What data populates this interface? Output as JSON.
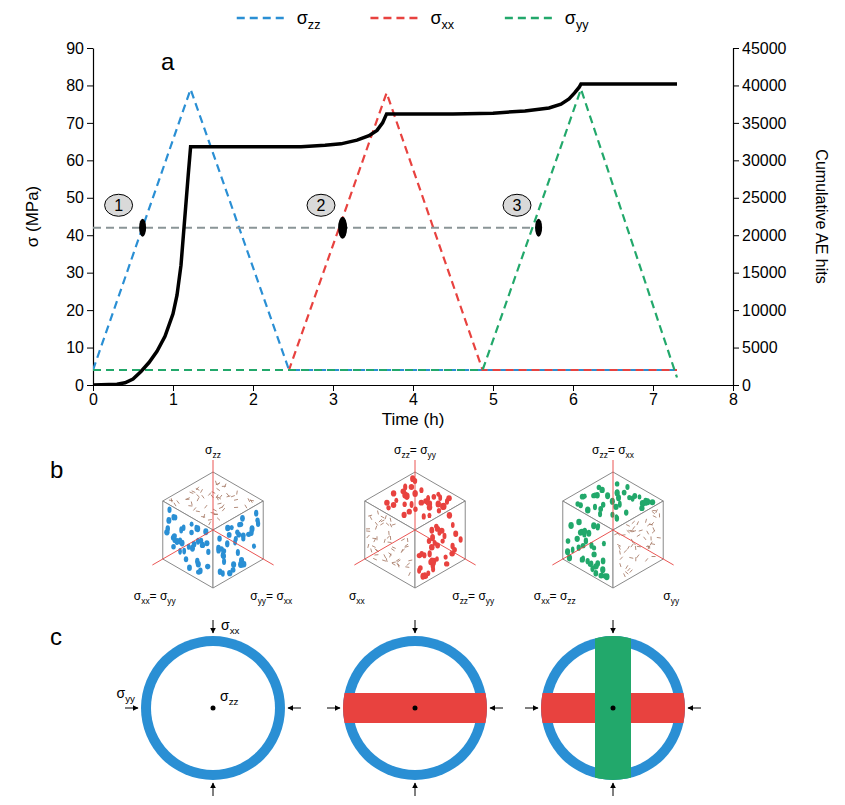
{
  "chart_data": {
    "type": "line",
    "panel_label": "a",
    "xlabel": "Time (h)",
    "ylabel": "σ (MPa)",
    "y2label": "Cumulative AE hits",
    "xlim": [
      0,
      8
    ],
    "xticks": [
      0,
      1,
      2,
      3,
      4,
      5,
      6,
      7,
      8
    ],
    "ylim": [
      0,
      90
    ],
    "yticks": [
      0,
      10,
      20,
      30,
      40,
      50,
      60,
      70,
      80,
      90
    ],
    "y2lim": [
      0,
      45000
    ],
    "y2ticks": [
      0,
      5000,
      10000,
      15000,
      20000,
      25000,
      30000,
      35000,
      40000,
      45000
    ],
    "legend": "top",
    "series": [
      {
        "name": "σzz",
        "color": "#2a8fd4",
        "line_style": "dashed",
        "x": [
          0,
          1.22,
          2.45,
          7.3
        ],
        "values": [
          4,
          79,
          4,
          4
        ]
      },
      {
        "name": "σxx",
        "color": "#e8423f",
        "line_style": "dashed",
        "x": [
          0,
          2.45,
          3.67,
          4.87,
          7.3
        ],
        "values": [
          4,
          4,
          78,
          4,
          4
        ]
      },
      {
        "name": "σyy",
        "color": "#22a86b",
        "line_style": "dashed",
        "x": [
          0,
          4.87,
          6.1,
          7.3
        ],
        "values": [
          4,
          4,
          79,
          2
        ]
      },
      {
        "color": "#8a9597",
        "line_style": "dashed",
        "x": [
          0,
          5.6
        ],
        "values": [
          42,
          42
        ]
      },
      {
        "color": "#000000",
        "line_style": "solid",
        "axis": "y2",
        "x": [
          0,
          0.3,
          0.4,
          0.5,
          0.6,
          0.7,
          0.8,
          0.9,
          1.0,
          1.05,
          1.1,
          1.13,
          1.16,
          1.19,
          1.22,
          2.0,
          2.6,
          2.9,
          3.1,
          3.3,
          3.45,
          3.55,
          3.62,
          3.67,
          4.5,
          5.0,
          5.4,
          5.7,
          5.85,
          5.95,
          6.02,
          6.08,
          6.1,
          7.3
        ],
        "values": [
          0,
          100,
          300,
          800,
          1800,
          3000,
          4500,
          6500,
          9500,
          12000,
          16000,
          20000,
          24000,
          28000,
          31800,
          31800,
          31800,
          32000,
          32200,
          32700,
          33300,
          34000,
          35000,
          36200,
          36200,
          36300,
          36600,
          37000,
          37500,
          38200,
          39000,
          39800,
          40200,
          40200
        ]
      }
    ],
    "annotations": [
      {
        "text": "1",
        "x": 0.32,
        "y": 48
      },
      {
        "text": "2",
        "x": 2.85,
        "y": 48
      },
      {
        "text": "3",
        "x": 5.3,
        "y": 48
      }
    ],
    "markers": [
      {
        "x": 0.62,
        "y": 42
      },
      {
        "x": 3.12,
        "y": 42
      },
      {
        "x": 5.57,
        "y": 42
      }
    ]
  },
  "diagram_b": {
    "panel_label": "b",
    "cubes": [
      {
        "top": "σzz",
        "left": "σxx= σyy",
        "right": "σyy= σxx",
        "fill": [
          "left",
          "right"
        ],
        "color": "#2a8fd4"
      },
      {
        "top": "σzz= σyy",
        "left": "σxx",
        "right": "σzz= σyy",
        "fill": [
          "top",
          "right"
        ],
        "color": "#e8423f"
      },
      {
        "top": "σzz= σxx",
        "left": "σxx= σzz",
        "right": "σyy",
        "fill": [
          "top",
          "left"
        ],
        "color": "#22a86b"
      }
    ]
  },
  "diagram_c": {
    "panel_label": "c",
    "labels": {
      "top": "σxx",
      "left": "σyy",
      "center": "σzz"
    },
    "ring_color": "#2a8fd4",
    "circles": [
      {
        "bands": []
      },
      {
        "bands": [
          {
            "orientation": "horizontal",
            "color": "#e8423f"
          }
        ]
      },
      {
        "bands": [
          {
            "orientation": "horizontal",
            "color": "#e8423f"
          },
          {
            "orientation": "vertical",
            "color": "#22a86b"
          }
        ]
      }
    ]
  }
}
